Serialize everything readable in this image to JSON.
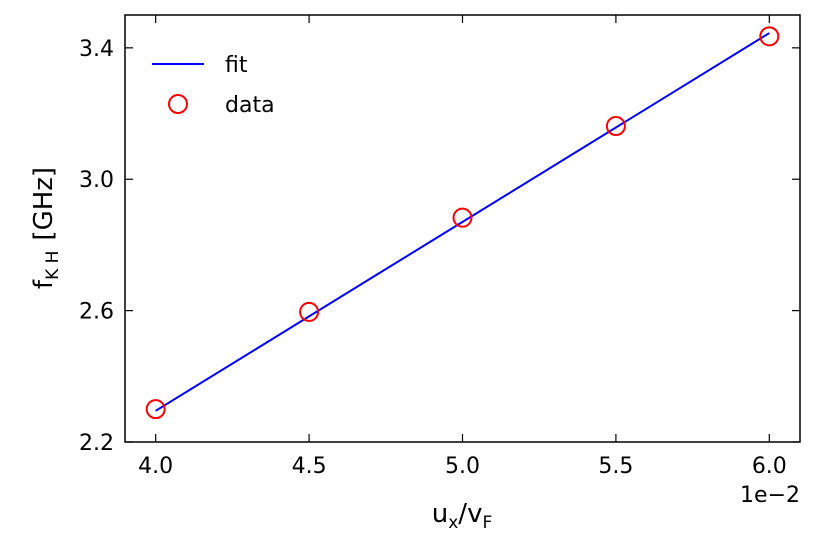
{
  "chart_data": {
    "type": "line",
    "x": [
      4.0,
      4.5,
      5.0,
      5.5,
      6.0
    ],
    "series": [
      {
        "name": "fit",
        "kind": "line",
        "color": "#0000ff",
        "x": [
          4.0,
          6.0
        ],
        "values": [
          2.295,
          3.445
        ]
      },
      {
        "name": "data",
        "kind": "scatter",
        "marker": "open-circle",
        "color": "#ff0000",
        "x": [
          4.0,
          4.5,
          5.0,
          5.5,
          6.0
        ],
        "values": [
          2.3,
          2.596,
          2.883,
          3.162,
          3.435
        ]
      }
    ],
    "xlim": [
      3.9,
      6.1
    ],
    "ylim": [
      2.2,
      3.5
    ],
    "xticks": [
      4.0,
      4.5,
      5.0,
      5.5,
      6.0
    ],
    "yticks": [
      2.2,
      2.6,
      3.0,
      3.4
    ],
    "xtick_labels": [
      "4.0",
      "4.5",
      "5.0",
      "5.5",
      "6.0"
    ],
    "ytick_labels": [
      "2.2",
      "2.6",
      "3.0",
      "3.4"
    ],
    "x_offset_text": "1e−2",
    "xlabel": {
      "main": "u",
      "sub1": "x",
      "sep": "/",
      "main2": "v",
      "sub2": "F"
    },
    "ylabel": {
      "main": "f",
      "sub": "K H",
      "unit": "[GHz]"
    },
    "legend": {
      "position": "top-left",
      "entries": [
        "fit",
        "data"
      ]
    },
    "grid": false
  }
}
